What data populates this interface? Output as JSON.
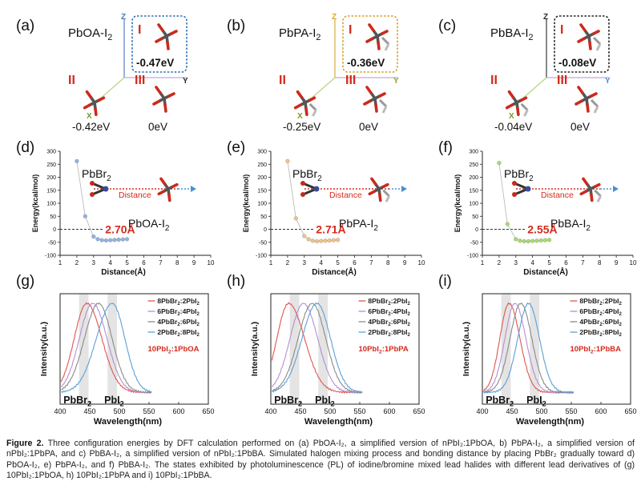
{
  "panels_top": [
    {
      "letter": "(a)",
      "molecule": "PbOA-I",
      "sub": "2",
      "boxColor": "#2f6fb5",
      "config1": "I",
      "config2": "II",
      "config3": "III",
      "e1": "-0.47eV",
      "e2": "-0.42eV",
      "e3": "0eV",
      "axisZ": "Z",
      "axisY": "Y",
      "axisX": "X",
      "zColor": "#4a78c0",
      "yColor": "#2a2a2a"
    },
    {
      "letter": "(b)",
      "molecule": "PbPA-I",
      "sub": "2",
      "boxColor": "#d6a12a",
      "config1": "I",
      "config2": "II",
      "config3": "III",
      "e1": "-0.36eV",
      "e2": "-0.25eV",
      "e3": "0eV",
      "axisZ": "Z",
      "axisY": "Y",
      "axisX": "X",
      "zColor": "#d9a92c",
      "yColor": "#8aa63a"
    },
    {
      "letter": "(c)",
      "molecule": "PbBA-I",
      "sub": "2",
      "boxColor": "#222222",
      "config1": "I",
      "config2": "II",
      "config3": "III",
      "e1": "-0.08eV",
      "e2": "-0.04eV",
      "e3": "0eV",
      "axisZ": "Z",
      "axisY": "Y",
      "axisX": "X",
      "zColor": "#2a2a2a",
      "yColor": "#4a8fd0"
    }
  ],
  "panels_mid": [
    {
      "letter": "(d)",
      "ylabel": "Energy(kcal/mol)",
      "xlabel": "Distance(Å)",
      "reactant": "PbBr",
      "reactantSub": "2",
      "product": "PbOA-I",
      "productSub": "2",
      "arrowLabel": "Distance",
      "bond": "2.70Å",
      "color": "#8fb3e3"
    },
    {
      "letter": "(e)",
      "ylabel": "Energy(kcal/mol)",
      "xlabel": "Distance(Å)",
      "reactant": "PbBr",
      "reactantSub": "2",
      "product": "PbPA-I",
      "productSub": "2",
      "arrowLabel": "Distance",
      "bond": "2.71Å",
      "color": "#f0c38a"
    },
    {
      "letter": "(f)",
      "ylabel": "Energy(kcal/mol)",
      "xlabel": "Distance(Å)",
      "reactant": "PbBr",
      "reactantSub": "2",
      "product": "PbBA-I",
      "productSub": "2",
      "arrowLabel": "Distance",
      "bond": "2.55Å",
      "color": "#a8dc6e"
    }
  ],
  "panels_pl": [
    {
      "letter": "(g)",
      "label": "10PbI",
      "labelSub": "2",
      "labelTail": ":1PbOA",
      "ylabel": "Intensity(a.u.)",
      "xlabel": "Wavelength(nm)",
      "band1": "PbBr",
      "band1Sub": "2",
      "band2": "PbI",
      "band2Sub": "2"
    },
    {
      "letter": "(h)",
      "label": "10PbI",
      "labelSub": "2",
      "labelTail": ":1PbPA",
      "ylabel": "Intensity(a.u.)",
      "xlabel": "Wavelength(nm)",
      "band1": "PbBr",
      "band1Sub": "2",
      "band2": "PbI",
      "band2Sub": "2"
    },
    {
      "letter": "(i)",
      "label": "10PbI",
      "labelSub": "2",
      "labelTail": ":1PbBA",
      "ylabel": "Intensity(a.u.)",
      "xlabel": "Wavelength(nm)",
      "band1": "PbBr",
      "band1Sub": "2",
      "band2": "PbI",
      "band2Sub": "2"
    }
  ],
  "legend": [
    {
      "a": "8PbBr",
      "b": ":2PbI",
      "color": "#e0554f"
    },
    {
      "a": "6PbBr",
      "b": ":4PbI",
      "color": "#b48fd0"
    },
    {
      "a": "4PbBr",
      "b": ":6PbI",
      "color": "#8a8a8a"
    },
    {
      "a": "2PbBr",
      "b": ":8PbI",
      "color": "#5aa0d8"
    }
  ],
  "chart_data": [
    {
      "type": "scatter",
      "title": "(d)",
      "xlabel": "Distance(Å)",
      "ylabel": "Energy(kcal/mol)",
      "xlim": [
        1,
        10
      ],
      "ylim": [
        -100,
        300
      ],
      "xticks": [
        1,
        2,
        3,
        4,
        5,
        6,
        7,
        8,
        9,
        10
      ],
      "yticks": [
        -100,
        -50,
        0,
        50,
        100,
        150,
        200,
        250,
        300
      ],
      "x": [
        2.0,
        2.5,
        3.0,
        3.25,
        3.5,
        3.75,
        4.0,
        4.25,
        4.5,
        4.75,
        5.0
      ],
      "y": [
        262,
        50,
        -28,
        -38,
        -42,
        -43,
        -42,
        -41,
        -40,
        -39,
        -38
      ],
      "annotation": "2.70Å"
    },
    {
      "type": "scatter",
      "title": "(e)",
      "xlabel": "Distance(Å)",
      "ylabel": "Energy(kcal/mol)",
      "xlim": [
        1,
        10
      ],
      "ylim": [
        -100,
        300
      ],
      "xticks": [
        1,
        2,
        3,
        4,
        5,
        6,
        7,
        8,
        9,
        10
      ],
      "yticks": [
        -100,
        -50,
        0,
        50,
        100,
        150,
        200,
        250,
        300
      ],
      "x": [
        2.0,
        2.5,
        3.0,
        3.25,
        3.5,
        3.75,
        4.0,
        4.25,
        4.5,
        4.75,
        5.0
      ],
      "y": [
        262,
        42,
        -26,
        -38,
        -44,
        -46,
        -45,
        -44,
        -43,
        -42,
        -41
      ],
      "annotation": "2.71Å"
    },
    {
      "type": "scatter",
      "title": "(f)",
      "xlabel": "Distance(Å)",
      "ylabel": "Energy(kcal/mol)",
      "xlim": [
        1,
        10
      ],
      "ylim": [
        -100,
        300
      ],
      "xticks": [
        1,
        2,
        3,
        4,
        5,
        6,
        7,
        8,
        9,
        10
      ],
      "yticks": [
        -100,
        -50,
        0,
        50,
        100,
        150,
        200,
        250,
        300
      ],
      "x": [
        2.0,
        2.5,
        3.0,
        3.25,
        3.5,
        3.75,
        4.0,
        4.25,
        4.5,
        4.75,
        5.0
      ],
      "y": [
        255,
        20,
        -38,
        -44,
        -46,
        -46,
        -45,
        -44,
        -43,
        -42,
        -41
      ],
      "annotation": "2.55Å"
    },
    {
      "type": "line",
      "title": "(g)",
      "xlabel": "Wavelength(nm)",
      "ylabel": "Intensity(a.u.)",
      "xlim": [
        400,
        650
      ],
      "xticks": [
        400,
        450,
        500,
        550,
        600,
        650
      ],
      "bands_nm": [
        [
          432,
          448
        ],
        [
          480,
          496
        ]
      ],
      "series": [
        {
          "name": "8PbBr2:2PbI2",
          "peak": 445,
          "sl": 30,
          "sr": 36,
          "end": 555
        },
        {
          "name": "6PbBr2:4PbI2",
          "peak": 455,
          "sl": 32,
          "sr": 34,
          "end": 555
        },
        {
          "name": "4PbBr2:6PbI2",
          "peak": 465,
          "sl": 34,
          "sr": 32,
          "end": 555
        },
        {
          "name": "2PbBr2:8PbI2",
          "peak": 488,
          "sl": 38,
          "sr": 30,
          "end": 555
        }
      ]
    },
    {
      "type": "line",
      "title": "(h)",
      "xlabel": "Wavelength(nm)",
      "ylabel": "Intensity(a.u.)",
      "xlim": [
        400,
        650
      ],
      "xticks": [
        400,
        450,
        500,
        550,
        600,
        650
      ],
      "bands_nm": [
        [
          432,
          448
        ],
        [
          480,
          496
        ]
      ],
      "series": [
        {
          "name": "8PbBr2:2PbI2",
          "peak": 430,
          "sl": 28,
          "sr": 38,
          "end": 555
        },
        {
          "name": "6PbBr2:4PbI2",
          "peak": 455,
          "sl": 32,
          "sr": 34,
          "end": 555
        },
        {
          "name": "4PbBr2:6PbI2",
          "peak": 470,
          "sl": 34,
          "sr": 32,
          "end": 555
        },
        {
          "name": "2PbBr2:8PbI2",
          "peak": 478,
          "sl": 36,
          "sr": 32,
          "end": 555
        }
      ]
    },
    {
      "type": "line",
      "title": "(i)",
      "xlabel": "Wavelength(nm)",
      "ylabel": "Intensity(a.u.)",
      "xlim": [
        400,
        650
      ],
      "xticks": [
        400,
        450,
        500,
        550,
        600,
        650
      ],
      "bands_nm": [
        [
          432,
          448
        ],
        [
          480,
          496
        ]
      ],
      "series": [
        {
          "name": "8PbBr2:2PbI2",
          "peak": 445,
          "sl": 22,
          "sr": 26,
          "end": 555
        },
        {
          "name": "6PbBr2:4PbI2",
          "peak": 455,
          "sl": 24,
          "sr": 26,
          "end": 555
        },
        {
          "name": "4PbBr2:6PbI2",
          "peak": 465,
          "sl": 26,
          "sr": 26,
          "end": 555
        },
        {
          "name": "2PbBr2:8PbI2",
          "peak": 478,
          "sl": 26,
          "sr": 26,
          "end": 555
        }
      ]
    }
  ],
  "caption": {
    "lead": "Figure 2.",
    "text": "Three configuration energies by DFT calculation performed on (a) PbOA-I₂, a simplified version of nPbI₂:1PbOA, b) PbPA-I₂, a simplified version of nPbI₂:1PbPA, and c) PbBA-I₂, a simplified version of nPbI₂:1PbBA. Simulated halogen mixing process and bonding distance by placing PbBr₂ gradually toward d) PbOA-I₂, e) PbPA-I₂, and f) PbBA-I₂. The states exhibited by photoluminescence (PL) of iodine/bromine mixed lead halides with different lead derivatives of (g) 10PbI₂:1PbOA, h) 10PbI₂:1PbPA and i) 10PbI₂:1PbBA."
  }
}
